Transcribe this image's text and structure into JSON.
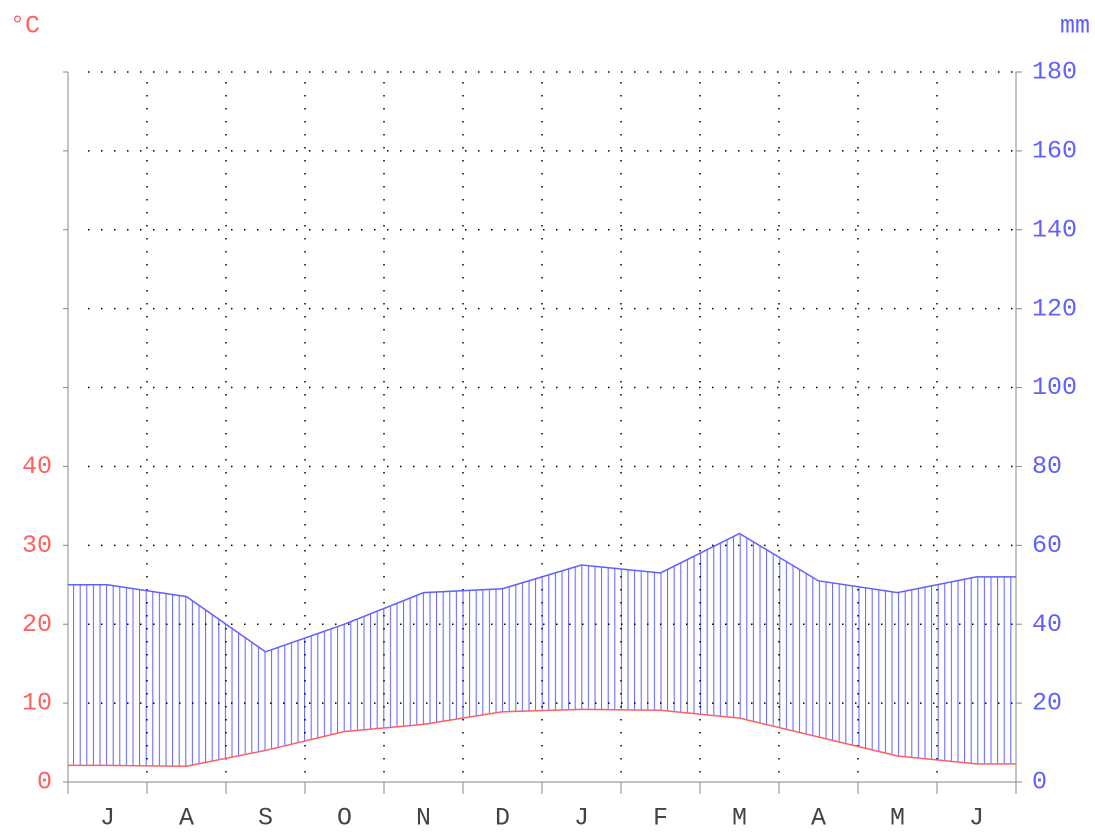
{
  "chart_data": {
    "type": "climate",
    "ylabel": "°C",
    "y2label": "mm",
    "categories": [
      "J",
      "A",
      "S",
      "O",
      "N",
      "D",
      "J",
      "F",
      "M",
      "A",
      "M",
      "J"
    ],
    "series": [
      {
        "name": "temperature",
        "color": "#ff6060",
        "axis": "y",
        "values": [
          2.1,
          2.0,
          4.0,
          6.4,
          7.3,
          8.9,
          9.2,
          9.1,
          8.1,
          5.7,
          3.3,
          2.3
        ]
      },
      {
        "name": "precipitation",
        "color": "#6060ff",
        "axis": "y2",
        "values": [
          50,
          47,
          33,
          40,
          48,
          49,
          55,
          53,
          63,
          51,
          48,
          52
        ]
      }
    ],
    "ylim": [
      0,
      90
    ],
    "yticks": [
      0,
      10,
      20,
      30,
      40
    ],
    "y2lim": [
      0,
      180
    ],
    "y2ticks": [
      0,
      20,
      40,
      60,
      80,
      100,
      120,
      140,
      160,
      180
    ],
    "grid": true
  }
}
